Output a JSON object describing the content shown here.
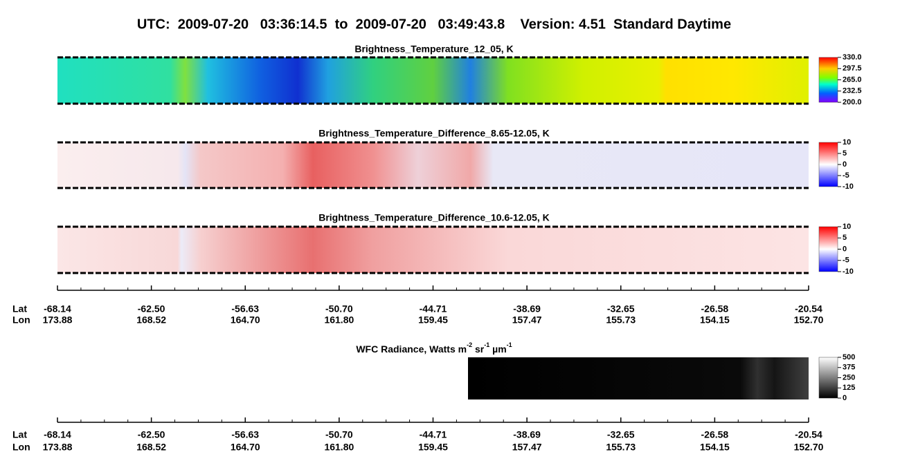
{
  "header": {
    "title": "UTC:  2009-07-20   03:36:14.5  to  2009-07-20   03:49:43.8    Version: 4.51  Standard Daytime"
  },
  "panels": [
    {
      "title": "Brightness_Temperature_12_05, K",
      "colorbar": [
        "330.0",
        "297.5",
        "265.0",
        "232.5",
        "200.0"
      ]
    },
    {
      "title": "Brightness_Temperature_Difference_8.65-12.05, K",
      "colorbar": [
        "10",
        "5",
        "0",
        "-5",
        "-10"
      ]
    },
    {
      "title": "Brightness_Temperature_Difference_10.6-12.05, K",
      "colorbar": [
        "10",
        "5",
        "0",
        "-5",
        "-10"
      ]
    },
    {
      "title_parts": [
        "WFC Radiance, Watts m",
        "-2",
        " sr",
        "-1",
        " µm",
        "-1"
      ],
      "colorbar": [
        "500",
        "375",
        "250",
        "125",
        "0"
      ]
    }
  ],
  "axis": {
    "lat_label": "Lat",
    "lon_label": "Lon",
    "lat": [
      "-68.14",
      "-62.50",
      "-56.63",
      "-50.70",
      "-44.71",
      "-38.69",
      "-32.65",
      "-26.58",
      "-20.54"
    ],
    "lon": [
      "173.88",
      "168.52",
      "164.70",
      "161.80",
      "159.45",
      "157.47",
      "155.73",
      "154.15",
      "152.70"
    ]
  }
}
